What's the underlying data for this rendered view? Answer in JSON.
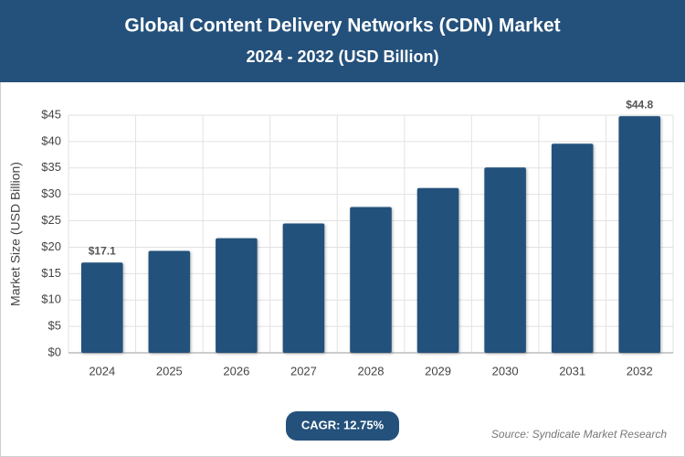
{
  "chart_data": {
    "type": "bar",
    "title": "Global Content Delivery Networks (CDN) Market",
    "subtitle": "2024 - 2032 (USD Billion)",
    "y_label": "Market Size (USD Billion)",
    "categories": [
      "2024",
      "2025",
      "2026",
      "2027",
      "2028",
      "2029",
      "2030",
      "2031",
      "2032"
    ],
    "values": [
      17.1,
      19.3,
      21.7,
      24.5,
      27.6,
      31.2,
      35.1,
      39.6,
      44.8
    ],
    "value_labels": [
      "$17.1",
      null,
      null,
      null,
      null,
      null,
      null,
      null,
      "$44.8"
    ],
    "color": "#24517b",
    "ylim": [
      0,
      45
    ],
    "yticks": [
      {
        "value": 0,
        "label": "$0"
      },
      {
        "value": 5,
        "label": "$5"
      },
      {
        "value": 10,
        "label": "$10"
      },
      {
        "value": 15,
        "label": "$15"
      },
      {
        "value": 20,
        "label": "$20"
      },
      {
        "value": 25,
        "label": "$25"
      },
      {
        "value": 30,
        "label": "$30"
      },
      {
        "value": 35,
        "label": "$35"
      },
      {
        "value": 40,
        "label": "$40"
      },
      {
        "value": 45,
        "label": "$45"
      }
    ],
    "grid": true,
    "badge": "CAGR: 12.75%",
    "source": "Source: Syndicate Market Research"
  }
}
